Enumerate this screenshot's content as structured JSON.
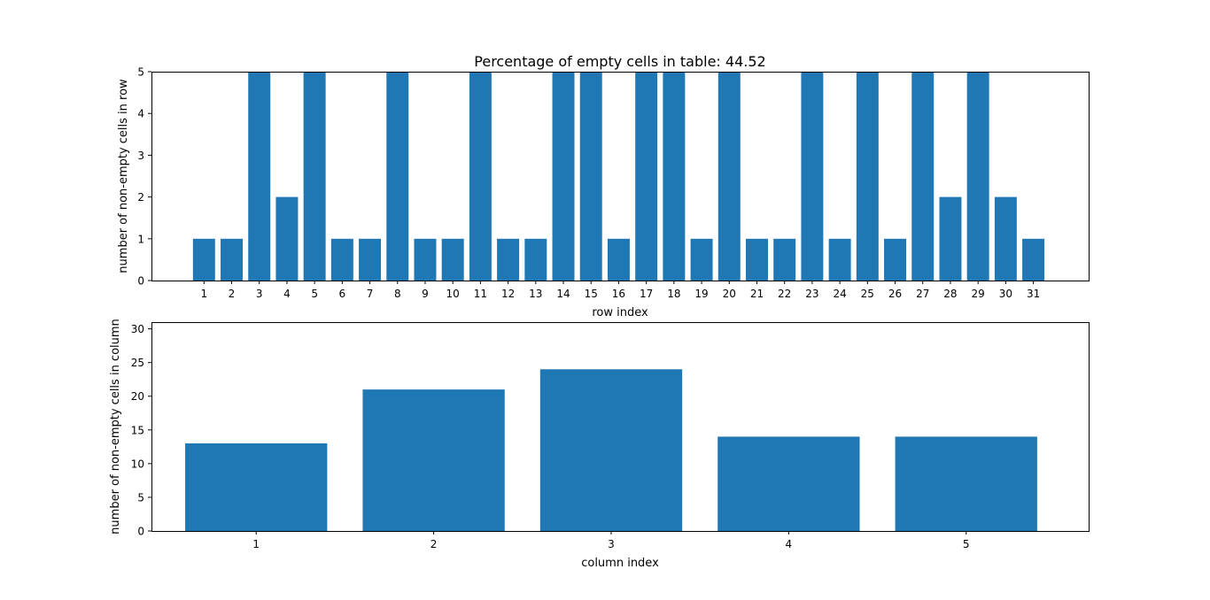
{
  "chart_data": [
    {
      "type": "bar",
      "title": "Percentage of empty cells in table: 44.52",
      "xlabel": "row index",
      "ylabel": "number of non-empty cells in row",
      "categories": [
        1,
        2,
        3,
        4,
        5,
        6,
        7,
        8,
        9,
        10,
        11,
        12,
        13,
        14,
        15,
        16,
        17,
        18,
        19,
        20,
        21,
        22,
        23,
        24,
        25,
        26,
        27,
        28,
        29,
        30,
        31
      ],
      "values": [
        1,
        1,
        5,
        2,
        5,
        1,
        1,
        5,
        1,
        1,
        5,
        1,
        1,
        5,
        5,
        1,
        5,
        5,
        1,
        5,
        1,
        1,
        5,
        1,
        5,
        1,
        5,
        2,
        5,
        2,
        1
      ],
      "yticks": [
        0,
        1,
        2,
        3,
        4,
        5
      ],
      "ylim": [
        0,
        5
      ],
      "xlim": [
        -0.9,
        33
      ],
      "bar_color": "#1f77b4",
      "grid": false
    },
    {
      "type": "bar",
      "title": "",
      "xlabel": "column index",
      "ylabel": "number of non-empty cells in column",
      "categories": [
        1,
        2,
        3,
        4,
        5
      ],
      "values": [
        13,
        21,
        24,
        14,
        14
      ],
      "yticks": [
        0,
        5,
        10,
        15,
        20,
        25,
        30
      ],
      "ylim": [
        0,
        31
      ],
      "xlim": [
        0.41,
        5.69
      ],
      "bar_color": "#1f77b4",
      "grid": false
    }
  ]
}
